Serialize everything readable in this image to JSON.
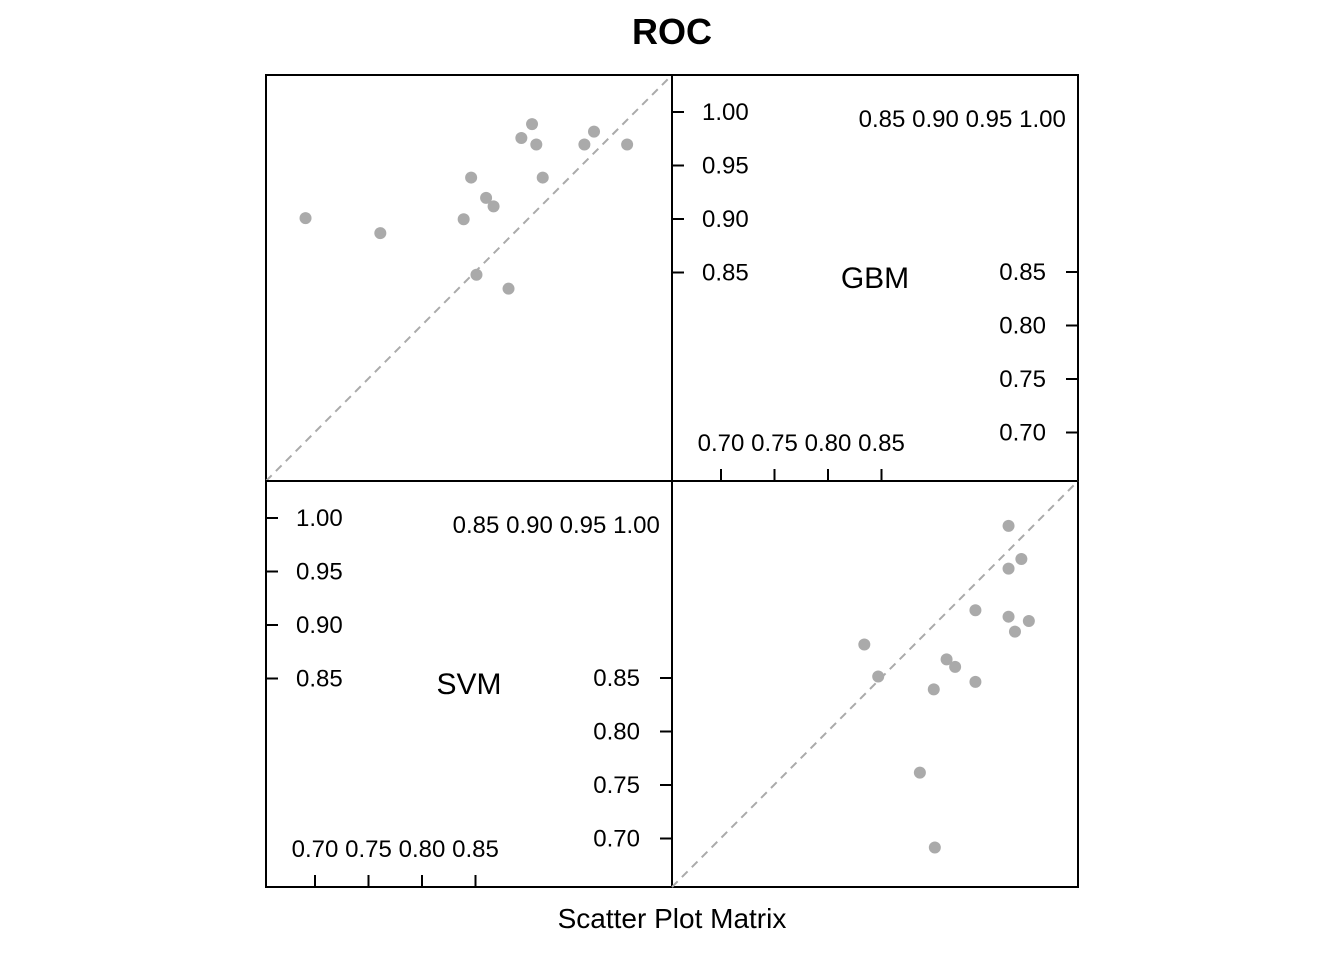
{
  "title": "ROC",
  "xlabel": "Scatter Plot Matrix",
  "colors": {
    "point": "#aaaaaa",
    "diagonal": "#aaaaaa",
    "frame": "#000000"
  },
  "chart_data": {
    "type": "scatter",
    "title": "ROC",
    "xlabel": "Scatter Plot Matrix",
    "variables": [
      "SVM",
      "GBM"
    ],
    "ranges": {
      "SVM": [
        0.66,
        1.04
      ],
      "GBM": [
        0.66,
        1.04
      ]
    },
    "ticks": {
      "SVM": {
        "top": [
          "0.85",
          "0.90",
          "0.95",
          "1.00"
        ],
        "right": [
          "0.70",
          "0.75",
          "0.80",
          "0.85"
        ],
        "bottom": [
          "0.70",
          "0.75",
          "0.80",
          "0.85"
        ],
        "left": [
          "0.85",
          "0.90",
          "0.95",
          "1.00"
        ]
      },
      "GBM": {
        "top": [
          "0.85",
          "0.90",
          "0.95",
          "1.00"
        ],
        "right": [
          "0.70",
          "0.75",
          "0.80",
          "0.85"
        ],
        "bottom": [
          "0.70",
          "0.75",
          "0.80",
          "0.85"
        ],
        "left": [
          "0.85",
          "0.90",
          "0.95",
          "1.00"
        ]
      }
    },
    "grid": false,
    "reference_line": "y = x",
    "points": [
      {
        "SVM": 0.697,
        "GBM": 0.906
      },
      {
        "SVM": 0.767,
        "GBM": 0.892
      },
      {
        "SVM": 0.845,
        "GBM": 0.905
      },
      {
        "SVM": 0.852,
        "GBM": 0.944
      },
      {
        "SVM": 0.857,
        "GBM": 0.853
      },
      {
        "SVM": 0.866,
        "GBM": 0.925
      },
      {
        "SVM": 0.873,
        "GBM": 0.917
      },
      {
        "SVM": 0.887,
        "GBM": 0.84
      },
      {
        "SVM": 0.899,
        "GBM": 0.981
      },
      {
        "SVM": 0.909,
        "GBM": 0.994
      },
      {
        "SVM": 0.913,
        "GBM": 0.975
      },
      {
        "SVM": 0.919,
        "GBM": 0.944
      },
      {
        "SVM": 0.958,
        "GBM": 0.975
      },
      {
        "SVM": 0.967,
        "GBM": 0.987
      },
      {
        "SVM": 0.998,
        "GBM": 0.975
      }
    ]
  }
}
